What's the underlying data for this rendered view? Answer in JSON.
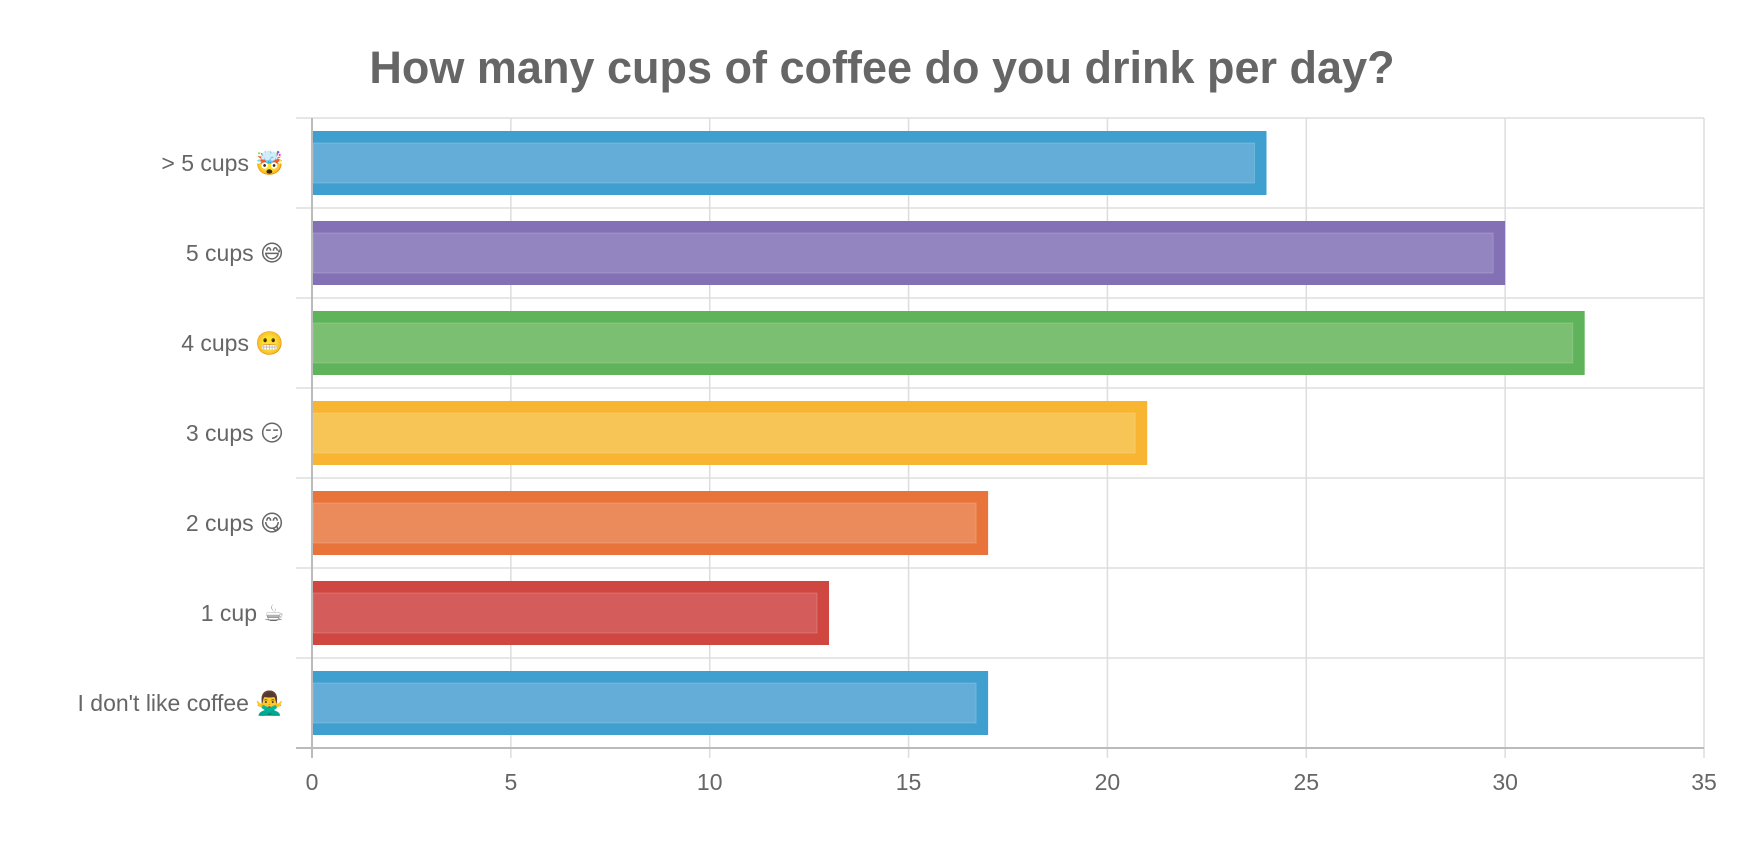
{
  "chart_data": {
    "type": "bar",
    "orientation": "horizontal",
    "title": "How many cups of coffee do you drink per day?",
    "categories": [
      "> 5 cups 🤯",
      "5 cups 😅",
      "4 cups 😬",
      "3 cups 😏",
      "2 cups 😋",
      "1 cup ☕",
      "I don't like coffee 🙅‍♂️"
    ],
    "values": [
      24,
      30,
      32,
      21,
      17,
      13,
      17
    ],
    "colors": [
      "#3f9fcf",
      "#8470b4",
      "#5fb35a",
      "#f7b531",
      "#e8743b",
      "#d04640",
      "#3f9fcf"
    ],
    "fill_colors": [
      "#63add8",
      "#9385bf",
      "#7bbf73",
      "#f7c556",
      "#eb8b5c",
      "#d45c5a",
      "#63add8"
    ],
    "xlim": [
      0,
      35
    ],
    "x_ticks": [
      0,
      5,
      10,
      15,
      20,
      25,
      30,
      35
    ],
    "xlabel": "",
    "ylabel": "",
    "grid": true,
    "legend": "none"
  }
}
